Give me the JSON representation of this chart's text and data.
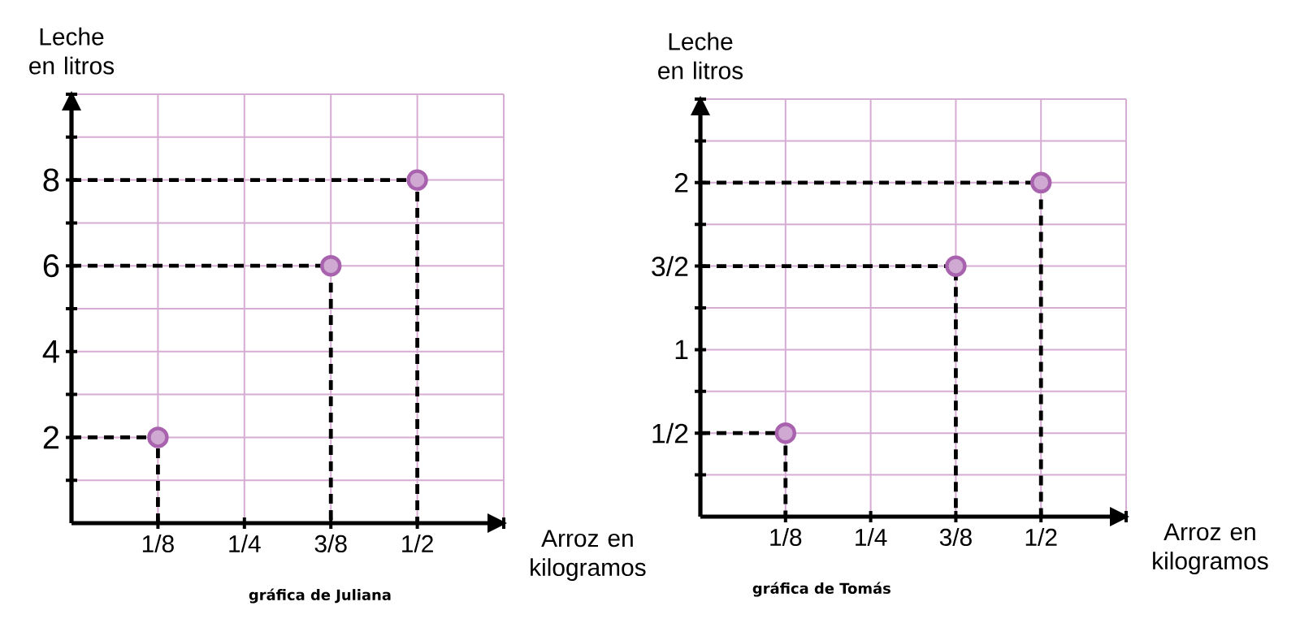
{
  "chart_data": [
    {
      "type": "scatter",
      "ylabel": "Leche en litros",
      "xlabel": "Arroz en kilogramos",
      "annotations": [
        "gráfica de Juliana"
      ],
      "x": [
        0.125,
        0.375,
        0.5
      ],
      "series": [
        {
          "color": "#a862ae",
          "marker": "circle",
          "values": [
            2,
            6,
            8
          ]
        },
        {
          "type": "line",
          "color": "#000000",
          "line_style": "dashed",
          "marker": "none",
          "x": [
            0,
            0.125,
            0.125
          ],
          "values": [
            2,
            2,
            0
          ]
        },
        {
          "type": "line",
          "color": "#000000",
          "line_style": "dashed",
          "marker": "none",
          "x": [
            0,
            0.375,
            0.375
          ],
          "values": [
            6,
            6,
            0
          ]
        },
        {
          "type": "line",
          "color": "#000000",
          "line_style": "dashed",
          "marker": "none",
          "x": [
            0,
            0.5,
            0.5
          ],
          "values": [
            8,
            8,
            0
          ]
        }
      ],
      "xlim": [
        0,
        0.625
      ],
      "ylim": [
        0,
        10
      ],
      "xticks": [
        {
          "value": 0.125,
          "label": "1/8"
        },
        {
          "value": 0.25,
          "label": "1/4"
        },
        {
          "value": 0.375,
          "label": "3/8"
        },
        {
          "value": 0.5,
          "label": "1/2"
        },
        {
          "value": 0.625,
          "label": null
        }
      ],
      "yticks": [
        {
          "value": 1,
          "label": null
        },
        2,
        {
          "value": 3,
          "label": null
        },
        4,
        {
          "value": 5,
          "label": null
        },
        6,
        {
          "value": 7,
          "label": null
        },
        8,
        {
          "value": 9,
          "label": null
        },
        {
          "value": 10,
          "label": null
        }
      ],
      "grid": true
    },
    {
      "type": "scatter",
      "ylabel": "Leche en litros",
      "xlabel": "Arroz en kilogramos",
      "annotations": [
        "gráfica de Tomás"
      ],
      "x": [
        0.125,
        0.375,
        0.5
      ],
      "series": [
        {
          "color": "#a862ae",
          "marker": "circle",
          "values": [
            0.5,
            1.5,
            2
          ]
        },
        {
          "type": "line",
          "color": "#000000",
          "line_style": "dashed",
          "marker": "none",
          "x": [
            0,
            0.125,
            0.125
          ],
          "values": [
            0.5,
            0.5,
            0
          ]
        },
        {
          "type": "line",
          "color": "#000000",
          "line_style": "dashed",
          "marker": "none",
          "x": [
            0,
            0.375,
            0.375
          ],
          "values": [
            1.5,
            1.5,
            0
          ]
        },
        {
          "type": "line",
          "color": "#000000",
          "line_style": "dashed",
          "marker": "none",
          "x": [
            0,
            0.5,
            0.5
          ],
          "values": [
            2,
            2,
            0
          ]
        }
      ],
      "xlim": [
        0,
        0.625
      ],
      "ylim": [
        0,
        2.5
      ],
      "xticks": [
        {
          "value": 0.125,
          "label": "1/8"
        },
        {
          "value": 0.25,
          "label": "1/4"
        },
        {
          "value": 0.375,
          "label": "3/8"
        },
        {
          "value": 0.5,
          "label": "1/2"
        },
        {
          "value": 0.625,
          "label": null
        }
      ],
      "yticks": [
        {
          "value": 0.25,
          "label": null
        },
        {
          "value": 0.5,
          "label": "1/2"
        },
        {
          "value": 0.75,
          "label": null
        },
        1,
        {
          "value": 1.25,
          "label": null
        },
        {
          "value": 1.5,
          "label": "3/2"
        },
        {
          "value": 1.75,
          "label": null
        },
        2,
        {
          "value": 2.25,
          "label": null
        },
        {
          "value": 2.5,
          "label": null
        }
      ],
      "grid": true
    }
  ]
}
